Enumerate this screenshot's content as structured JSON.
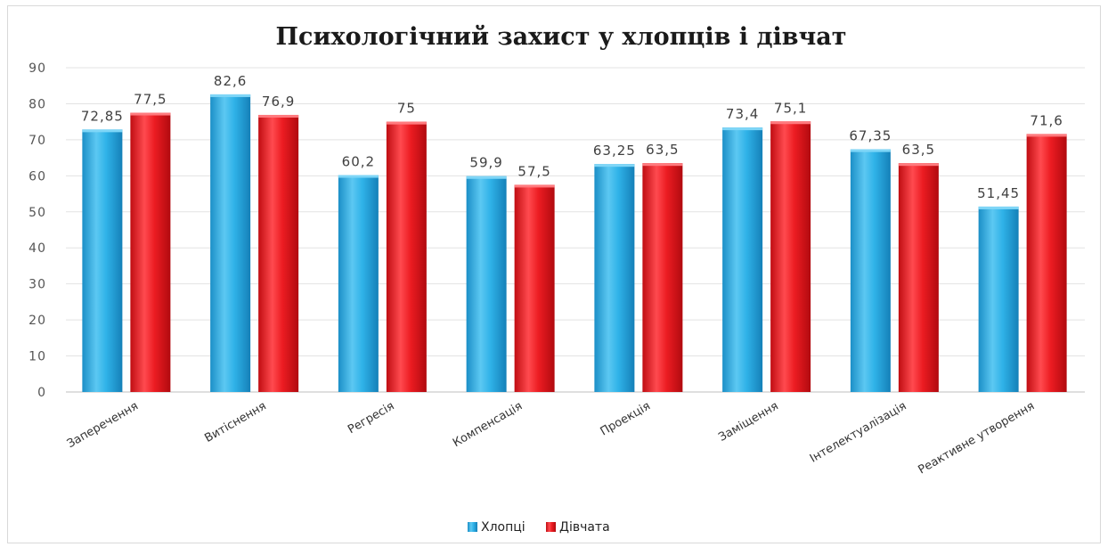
{
  "chart_data": {
    "type": "bar",
    "title": "Психологічний захист у хлопців і дівчат",
    "xlabel": "",
    "ylabel": "",
    "ylim": [
      0,
      90
    ],
    "yticks": [
      0,
      10,
      20,
      30,
      40,
      50,
      60,
      70,
      80,
      90
    ],
    "grid": true,
    "legend_position": "bottom",
    "categories": [
      "Заперечення",
      "Витіснення",
      "Регресія",
      "Компенсація",
      "Проекція",
      "Заміщення",
      "Інтелектуалізація",
      "Реактивне утворення"
    ],
    "series": [
      {
        "name": "Хлопці",
        "color": "#29ABE2",
        "values": [
          72.85,
          82.6,
          60.2,
          59.9,
          63.25,
          73.4,
          67.35,
          51.45
        ],
        "labels": [
          "72,85",
          "82,6",
          "60,2",
          "59,9",
          "63,25",
          "73,4",
          "67,35",
          "51,45"
        ]
      },
      {
        "name": "Дівчата",
        "color": "#E8141A",
        "values": [
          77.5,
          76.9,
          75,
          57.5,
          63.5,
          75.1,
          63.5,
          71.6
        ],
        "labels": [
          "77,5",
          "76,9",
          "75",
          "57,5",
          "63,5",
          "75,1",
          "63,5",
          "71,6"
        ]
      }
    ]
  }
}
